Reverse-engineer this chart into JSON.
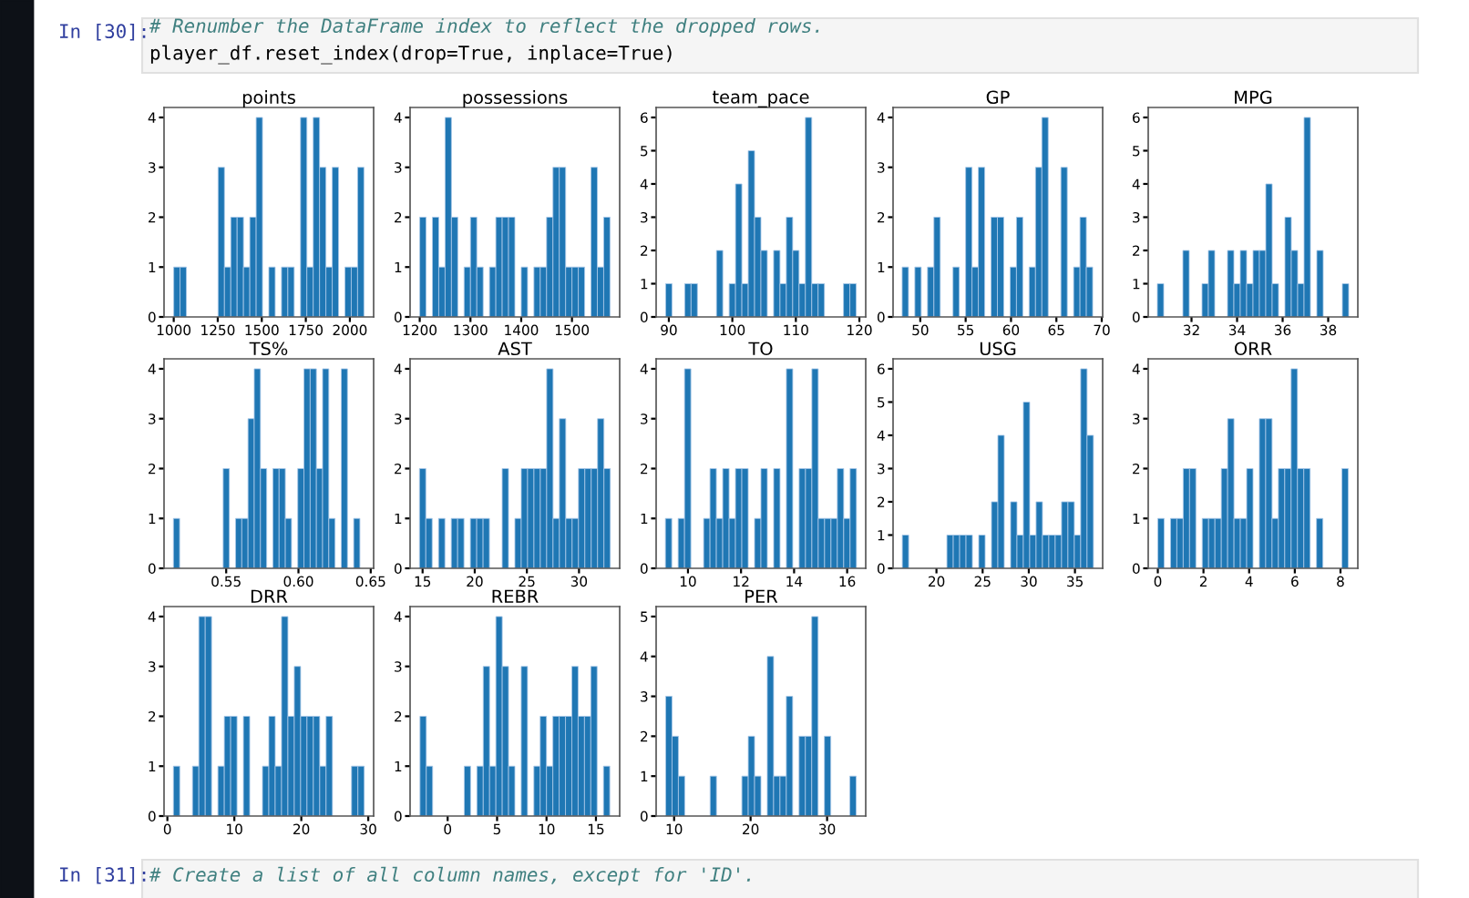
{
  "chart_data": [
    {
      "type": "other",
      "annotations": [
        "In [30]:",
        "# Renumber the DataFrame index to reflect the dropped rows.",
        "player_df.reset_index(drop=True, inplace=True)",
        "In [31]:",
        "# Create a list of all column names, except for 'ID'."
      ]
    },
    {
      "type": "histogram",
      "title": "points",
      "color": "#1f77b4",
      "xlim": [
        945,
        2135
      ],
      "xticks": [
        1000,
        1250,
        1500,
        1750,
        2000
      ],
      "ylim": [
        0,
        4.2
      ],
      "yticks": [
        0,
        1,
        2,
        3,
        4
      ],
      "bins": [
        1000,
        1036,
        1072,
        1108,
        1144,
        1180,
        1216,
        1252,
        1288,
        1324,
        1360,
        1396,
        1432,
        1468,
        1504,
        1540,
        1576,
        1612,
        1648,
        1684,
        1720,
        1756,
        1792,
        1828,
        1864,
        1900,
        1936,
        1972,
        2008,
        2044,
        2080
      ],
      "values": [
        1,
        1,
        0,
        0,
        0,
        0,
        0,
        3,
        1,
        2,
        2,
        1,
        2,
        4,
        0,
        1,
        0,
        1,
        1,
        0,
        4,
        1,
        4,
        3,
        1,
        3,
        0,
        1,
        1,
        3
      ]
    },
    {
      "type": "histogram",
      "title": "possessions",
      "color": "#1f77b4",
      "xlim": [
        1181,
        1594
      ],
      "xticks": [
        1200,
        1300,
        1400,
        1500
      ],
      "ylim": [
        0,
        4.2
      ],
      "yticks": [
        0,
        1,
        2,
        3,
        4
      ],
      "bins": [
        1200,
        1212.5,
        1225,
        1237.5,
        1250,
        1262.5,
        1275,
        1287.5,
        1300,
        1312.5,
        1325,
        1337.5,
        1350,
        1362.5,
        1375,
        1387.5,
        1400,
        1412.5,
        1425,
        1437.5,
        1450,
        1462.5,
        1475,
        1487.5,
        1500,
        1512.5,
        1525,
        1537.5,
        1550,
        1562.5,
        1575
      ],
      "values": [
        2,
        0,
        2,
        1,
        4,
        2,
        0,
        1,
        2,
        1,
        0,
        1,
        2,
        2,
        2,
        0,
        1,
        0,
        1,
        1,
        2,
        3,
        3,
        1,
        1,
        1,
        0,
        3,
        1,
        2
      ]
    },
    {
      "type": "histogram",
      "title": "team_pace",
      "color": "#1f77b4",
      "xlim": [
        88,
        121
      ],
      "xticks": [
        90,
        100,
        110,
        120
      ],
      "ylim": [
        0,
        6.3
      ],
      "yticks": [
        0,
        1,
        2,
        3,
        4,
        5,
        6
      ],
      "bins": [
        89.5,
        90.5,
        91.5,
        92.5,
        93.5,
        94.5,
        95.5,
        96.5,
        97.5,
        98.5,
        99.5,
        100.5,
        101.5,
        102.5,
        103.5,
        104.5,
        105.5,
        106.5,
        107.5,
        108.5,
        109.5,
        110.5,
        111.5,
        112.5,
        113.5,
        114.5,
        115.5,
        116.5,
        117.5,
        118.5,
        119.5
      ],
      "values": [
        1,
        0,
        0,
        1,
        1,
        0,
        0,
        0,
        2,
        0,
        1,
        4,
        1,
        5,
        3,
        2,
        0,
        2,
        1,
        3,
        2,
        1,
        6,
        1,
        1,
        0,
        0,
        0,
        1,
        1
      ]
    },
    {
      "type": "histogram",
      "title": "GP",
      "color": "#1f77b4",
      "xlim": [
        47,
        70.1
      ],
      "xticks": [
        50,
        55,
        60,
        65,
        70
      ],
      "ylim": [
        0,
        4.2
      ],
      "yticks": [
        0,
        1,
        2,
        3,
        4
      ],
      "bins": [
        48,
        48.7,
        49.4,
        50.1,
        50.8,
        51.5,
        52.2,
        52.9,
        53.6,
        54.3,
        55,
        55.7,
        56.4,
        57.1,
        57.8,
        58.5,
        59.2,
        59.9,
        60.6,
        61.3,
        62,
        62.7,
        63.4,
        64.1,
        64.8,
        65.5,
        66.2,
        66.9,
        67.6,
        68.3,
        69
      ],
      "values": [
        1,
        0,
        1,
        0,
        1,
        2,
        0,
        0,
        1,
        0,
        3,
        1,
        3,
        0,
        2,
        2,
        0,
        1,
        2,
        0,
        1,
        3,
        4,
        0,
        0,
        3,
        0,
        1,
        2,
        1
      ]
    },
    {
      "type": "histogram",
      "title": "MPG",
      "color": "#1f77b4",
      "xlim": [
        30.1,
        39.3
      ],
      "xticks": [
        32,
        34,
        36,
        38
      ],
      "ylim": [
        0,
        6.3
      ],
      "yticks": [
        0,
        1,
        2,
        3,
        4,
        5,
        6
      ],
      "bins": [
        30.5,
        30.78,
        31.06,
        31.34,
        31.62,
        31.9,
        32.18,
        32.46,
        32.74,
        33.02,
        33.3,
        33.58,
        33.86,
        34.14,
        34.42,
        34.7,
        34.98,
        35.26,
        35.54,
        35.82,
        36.1,
        36.38,
        36.66,
        36.94,
        37.22,
        37.5,
        37.78,
        38.06,
        38.34,
        38.62,
        38.9
      ],
      "values": [
        1,
        0,
        0,
        0,
        2,
        0,
        0,
        1,
        2,
        0,
        0,
        2,
        1,
        2,
        1,
        2,
        2,
        4,
        1,
        0,
        3,
        2,
        1,
        6,
        0,
        2,
        0,
        0,
        0,
        1
      ]
    },
    {
      "type": "histogram",
      "title": "TS%",
      "color": "#1f77b4",
      "xlim": [
        0.507,
        0.652
      ],
      "xticks": [
        {
          "value": 0.55,
          "label": "0.55"
        },
        {
          "value": 0.6,
          "label": "0.60"
        },
        {
          "value": 0.65,
          "label": "0.65"
        }
      ],
      "ylim": [
        0,
        4.2
      ],
      "yticks": [
        0,
        1,
        2,
        3,
        4
      ],
      "bins": [
        0.5135,
        0.5178,
        0.5221,
        0.5264,
        0.5307,
        0.535,
        0.5393,
        0.5436,
        0.5479,
        0.5522,
        0.5565,
        0.5608,
        0.5651,
        0.5694,
        0.5737,
        0.578,
        0.5823,
        0.5866,
        0.5909,
        0.5952,
        0.5995,
        0.6038,
        0.6081,
        0.6124,
        0.6167,
        0.621,
        0.6253,
        0.6296,
        0.6339,
        0.6382,
        0.6425
      ],
      "values": [
        1,
        0,
        0,
        0,
        0,
        0,
        0,
        0,
        2,
        0,
        1,
        1,
        3,
        4,
        2,
        0,
        2,
        2,
        1,
        0,
        2,
        4,
        4,
        2,
        4,
        1,
        0,
        4,
        0,
        1
      ]
    },
    {
      "type": "histogram",
      "title": "AST",
      "color": "#1f77b4",
      "xlim": [
        13.8,
        33.9
      ],
      "xticks": [
        15,
        20,
        25,
        30
      ],
      "ylim": [
        0,
        4.2
      ],
      "yticks": [
        0,
        1,
        2,
        3,
        4
      ],
      "bins": [
        14.7,
        15.31,
        15.92,
        16.53,
        17.14,
        17.75,
        18.36,
        18.97,
        19.58,
        20.19,
        20.8,
        21.41,
        22.02,
        22.63,
        23.24,
        23.85,
        24.46,
        25.07,
        25.68,
        26.29,
        26.9,
        27.51,
        28.12,
        28.73,
        29.34,
        29.95,
        30.56,
        31.17,
        31.78,
        32.39,
        33
      ],
      "values": [
        2,
        1,
        0,
        1,
        0,
        1,
        1,
        0,
        1,
        1,
        1,
        0,
        0,
        2,
        0,
        1,
        2,
        2,
        2,
        2,
        4,
        1,
        3,
        1,
        1,
        2,
        2,
        2,
        3,
        2
      ]
    },
    {
      "type": "histogram",
      "title": "TO",
      "color": "#1f77b4",
      "xlim": [
        8.8,
        16.7
      ],
      "xticks": [
        10,
        12,
        14,
        16
      ],
      "ylim": [
        0,
        4.2
      ],
      "yticks": [
        0,
        1,
        2,
        3,
        4
      ],
      "bins": [
        9.15,
        9.39,
        9.63,
        9.87,
        10.11,
        10.35,
        10.59,
        10.83,
        11.07,
        11.31,
        11.55,
        11.79,
        12.03,
        12.27,
        12.51,
        12.75,
        12.99,
        13.23,
        13.47,
        13.71,
        13.95,
        14.19,
        14.43,
        14.67,
        14.91,
        15.15,
        15.39,
        15.63,
        15.87,
        16.11,
        16.35
      ],
      "values": [
        1,
        0,
        1,
        4,
        0,
        0,
        1,
        2,
        1,
        2,
        1,
        2,
        2,
        0,
        1,
        2,
        0,
        2,
        0,
        4,
        0,
        2,
        2,
        4,
        1,
        1,
        1,
        2,
        1,
        2
      ]
    },
    {
      "type": "histogram",
      "title": "USG",
      "color": "#1f77b4",
      "xlim": [
        15.3,
        38.0
      ],
      "xticks": [
        20,
        25,
        30,
        35
      ],
      "ylim": [
        0,
        6.3
      ],
      "yticks": [
        0,
        1,
        2,
        3,
        4,
        5,
        6
      ],
      "bins": [
        16.3,
        16.99,
        17.68,
        18.37,
        19.06,
        19.75,
        20.44,
        21.13,
        21.82,
        22.51,
        23.2,
        23.89,
        24.58,
        25.27,
        25.96,
        26.65,
        27.34,
        28.03,
        28.72,
        29.41,
        30.1,
        30.79,
        31.48,
        32.17,
        32.86,
        33.55,
        34.24,
        34.93,
        35.62,
        36.31,
        37
      ],
      "values": [
        1,
        0,
        0,
        0,
        0,
        0,
        0,
        1,
        1,
        1,
        1,
        0,
        1,
        0,
        2,
        4,
        0,
        2,
        1,
        5,
        1,
        2,
        1,
        1,
        1,
        2,
        2,
        1,
        6,
        4
      ]
    },
    {
      "type": "histogram",
      "title": "ORR",
      "color": "#1f77b4",
      "xlim": [
        -0.42,
        8.76
      ],
      "xticks": [
        0,
        2,
        4,
        6,
        8
      ],
      "ylim": [
        0,
        4.2
      ],
      "yticks": [
        0,
        1,
        2,
        3,
        4
      ],
      "bins": [
        0,
        0.278,
        0.556,
        0.834,
        1.112,
        1.39,
        1.668,
        1.946,
        2.224,
        2.502,
        2.78,
        3.058,
        3.336,
        3.614,
        3.892,
        4.17,
        4.448,
        4.726,
        5.004,
        5.282,
        5.56,
        5.838,
        6.116,
        6.394,
        6.672,
        6.95,
        7.228,
        7.506,
        7.784,
        8.062,
        8.34
      ],
      "values": [
        1,
        0,
        1,
        1,
        2,
        2,
        0,
        1,
        1,
        1,
        2,
        3,
        1,
        1,
        2,
        0,
        3,
        3,
        1,
        2,
        2,
        4,
        2,
        2,
        0,
        1,
        0,
        0,
        0,
        2
      ]
    },
    {
      "type": "histogram",
      "title": "DRR",
      "color": "#1f77b4",
      "xlim": [
        -0.5,
        30.8
      ],
      "xticks": [
        0,
        10,
        20,
        30
      ],
      "ylim": [
        0,
        4.2
      ],
      "yticks": [
        0,
        1,
        2,
        3,
        4
      ],
      "bins": [
        0.9,
        1.85,
        2.8,
        3.75,
        4.7,
        5.65,
        6.6,
        7.55,
        8.5,
        9.45,
        10.4,
        11.35,
        12.3,
        13.25,
        14.2,
        15.15,
        16.1,
        17.05,
        18,
        18.95,
        19.9,
        20.85,
        21.8,
        22.75,
        23.7,
        24.65,
        25.6,
        26.55,
        27.5,
        28.45,
        29.4
      ],
      "values": [
        1,
        0,
        0,
        1,
        4,
        4,
        0,
        1,
        2,
        2,
        0,
        2,
        0,
        0,
        1,
        2,
        1,
        4,
        2,
        3,
        2,
        2,
        2,
        1,
        2,
        0,
        0,
        0,
        1,
        1
      ]
    },
    {
      "type": "histogram",
      "title": "REBR",
      "color": "#1f77b4",
      "xlim": [
        -3.8,
        17.4
      ],
      "xticks": [
        0,
        5,
        10,
        15
      ],
      "ylim": [
        0,
        4.2
      ],
      "yticks": [
        0,
        1,
        2,
        3,
        4
      ],
      "bins": [
        -2.8,
        -2.16,
        -1.52,
        -0.88,
        -0.24,
        0.4,
        1.04,
        1.68,
        2.32,
        2.96,
        3.6,
        4.24,
        4.88,
        5.52,
        6.16,
        6.8,
        7.44,
        8.08,
        8.72,
        9.36,
        10,
        10.64,
        11.28,
        11.92,
        12.56,
        13.2,
        13.84,
        14.48,
        15.12,
        15.76,
        16.4
      ],
      "values": [
        2,
        1,
        0,
        0,
        0,
        0,
        0,
        1,
        0,
        1,
        3,
        1,
        4,
        3,
        1,
        0,
        3,
        0,
        1,
        2,
        1,
        2,
        2,
        2,
        3,
        2,
        2,
        3,
        0,
        1
      ]
    },
    {
      "type": "histogram",
      "title": "PER",
      "color": "#1f77b4",
      "xlim": [
        7.65,
        35.05
      ],
      "xticks": [
        10,
        20,
        30
      ],
      "ylim": [
        0,
        5.25
      ],
      "yticks": [
        0,
        1,
        2,
        3,
        4,
        5
      ],
      "bins": [
        8.9,
        9.73,
        10.56,
        11.39,
        12.22,
        13.05,
        13.88,
        14.71,
        15.54,
        16.37,
        17.2,
        18.03,
        18.86,
        19.69,
        20.52,
        21.35,
        22.18,
        23.01,
        23.84,
        24.67,
        25.5,
        26.33,
        27.16,
        27.99,
        28.82,
        29.65,
        30.48,
        31.31,
        32.14,
        32.97,
        33.8
      ],
      "values": [
        3,
        2,
        1,
        0,
        0,
        0,
        0,
        1,
        0,
        0,
        0,
        0,
        1,
        2,
        1,
        0,
        4,
        1,
        1,
        3,
        0,
        2,
        2,
        5,
        0,
        2,
        0,
        0,
        0,
        1
      ]
    }
  ]
}
